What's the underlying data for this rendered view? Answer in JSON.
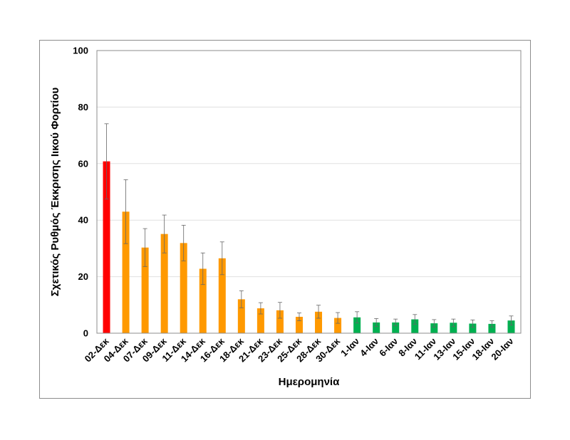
{
  "chart_data": {
    "type": "bar",
    "title": "",
    "xlabel": "Ημερομηνία",
    "ylabel": "Σχετικός Ρυθμός Έκκρισης Ιικού Φορτίου",
    "ylim": [
      0,
      100
    ],
    "yticks": [
      0,
      20,
      40,
      60,
      80,
      100
    ],
    "grid": true,
    "legend": "none",
    "categories": [
      "02-Δεκ",
      "04-Δεκ",
      "07-Δεκ",
      "09-Δεκ",
      "11-Δεκ",
      "14-Δεκ",
      "16-Δεκ",
      "18-Δεκ",
      "21-Δεκ",
      "23-Δεκ",
      "25-Δεκ",
      "28-Δεκ",
      "30-Δεκ",
      "1-Ιαν",
      "4-Ιαν",
      "6-Ιαν",
      "8-Ιαν",
      "11-Ιαν",
      "13-Ιαν",
      "15-Ιαν",
      "18-Ιαν",
      "20-Ιαν"
    ],
    "values": [
      60.8,
      43.0,
      30.3,
      35.1,
      31.9,
      22.8,
      26.5,
      12.0,
      8.8,
      8.1,
      5.8,
      7.6,
      5.4,
      5.6,
      3.8,
      3.8,
      4.9,
      3.5,
      3.7,
      3.4,
      3.3,
      4.5
    ],
    "error": [
      13.3,
      11.3,
      6.7,
      6.7,
      6.3,
      5.6,
      5.8,
      3.0,
      2.0,
      2.8,
      1.4,
      2.3,
      1.9,
      2.0,
      1.4,
      1.2,
      1.7,
      1.3,
      1.3,
      1.3,
      1.1,
      1.6
    ],
    "bar_colors": [
      "#ff0000",
      "#ff9900",
      "#ff9900",
      "#ff9900",
      "#ff9900",
      "#ff9900",
      "#ff9900",
      "#ff9900",
      "#ff9900",
      "#ff9900",
      "#ff9900",
      "#ff9900",
      "#ff9900",
      "#00b050",
      "#00b050",
      "#00b050",
      "#00b050",
      "#00b050",
      "#00b050",
      "#00b050",
      "#00b050",
      "#00b050"
    ]
  }
}
